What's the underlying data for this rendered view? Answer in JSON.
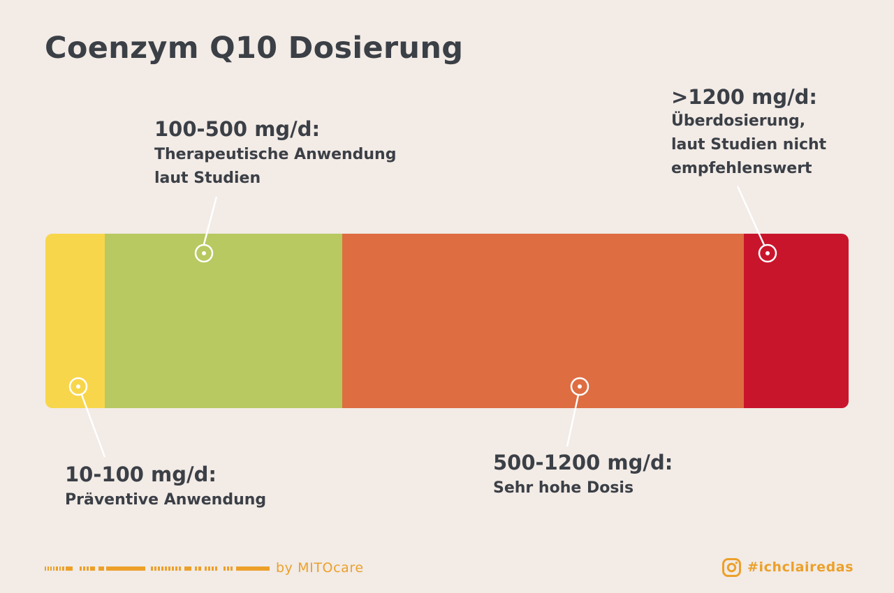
{
  "title": "Coenzym Q10 Dosierung",
  "segments": [
    {
      "range": "10-100 mg/d",
      "color": "#f8d64b"
    },
    {
      "range": "100-500 mg/d",
      "color": "#b7c960"
    },
    {
      "range": "500-1200 mg/d",
      "color": "#de6d42"
    },
    {
      "range": ">1200 mg/d",
      "color": "#c9152c"
    }
  ],
  "callouts": {
    "therapeutic": {
      "dose": "100-500 mg/d:",
      "description": "Therapeutische Anwendung\nlaut Studien"
    },
    "overdose": {
      "dose": ">1200 mg/d:",
      "description": "Überdosierung,\nlaut Studien nicht\nempfehlenswert"
    },
    "preventive": {
      "dose": "10-100 mg/d:",
      "description": "Präventive Anwendung"
    },
    "high": {
      "dose": "500-1200 mg/d:",
      "description": "Sehr hohe Dosis"
    }
  },
  "footer": {
    "credit": "by MITOcare",
    "hashtag": "#ichclairedas",
    "hashtag_icon": "instagram-icon",
    "accent_color": "#eca02a"
  }
}
